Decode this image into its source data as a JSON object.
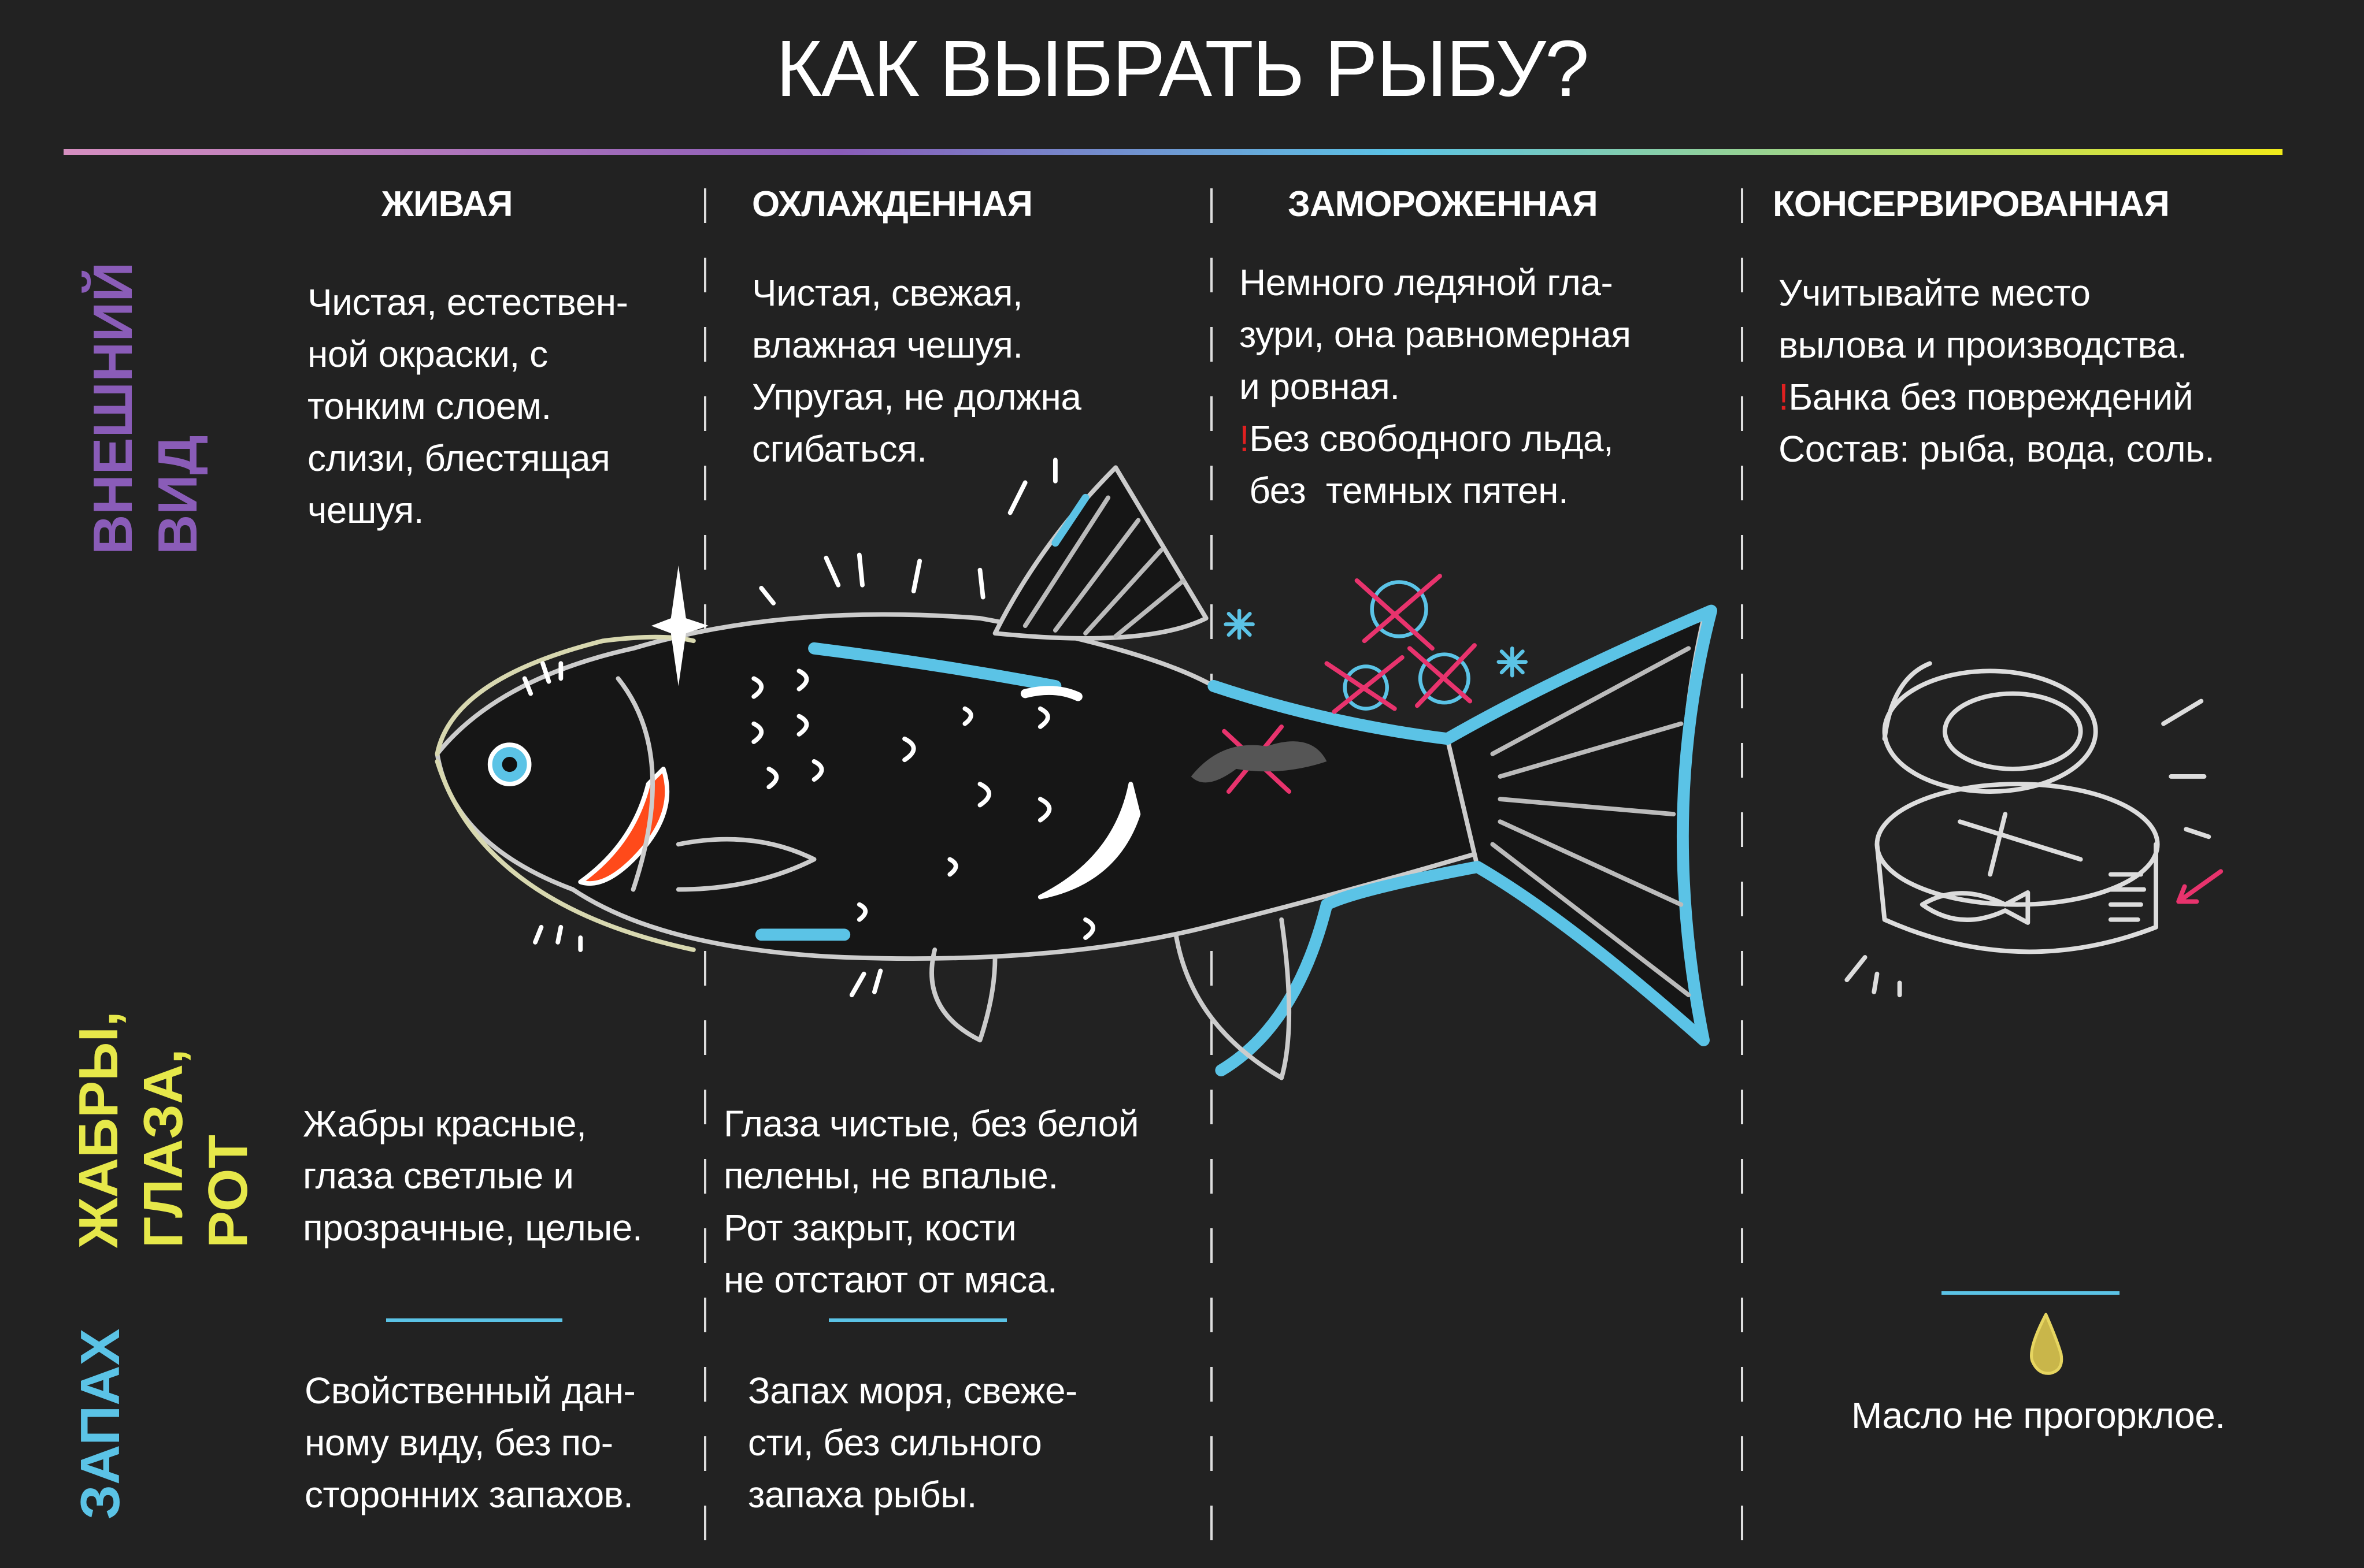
{
  "title": "КАК ВЫБРАТЬ РЫБУ?",
  "colors": {
    "appearance": "#8a5cb8",
    "gills": "#e6e84a",
    "smell": "#5bc3e6",
    "warning": "#e02020",
    "accent_line": "#5bc3e6"
  },
  "columns": [
    "ЖИВАЯ",
    "ОХЛАЖДЕННАЯ",
    "ЗАМОРОЖЕННАЯ",
    "КОНСЕРВИРОВАННАЯ"
  ],
  "rows": {
    "appearance": {
      "label": "ВНЕШНИЙ\nВИД",
      "live": "Чистая, естествен-\nной окраски, с\nтонким слоем.\nслизи, блестящая\nчешуя.",
      "chilled": "Чистая, свежая,\nвлажная чешуя.\nУпругая, не должна\nсгибаться.",
      "frozen": "Немного ледяной гла-\nзури, она равномерная\nи ровная.",
      "frozen_warning_mark": "!",
      "frozen_warning": "Без свободного льда,\nбез  темных пятен.",
      "canned_line1": "Учитывайте место\nвылова и производства.",
      "canned_warning_mark": "!",
      "canned_warning": "Банка без повреждений",
      "canned_line2": "Состав: рыба, вода, соль."
    },
    "gills": {
      "label": "ЖАБРЫ,\nГЛАЗА,\nРОТ",
      "live": "Жабры красные,\nглаза светлые и\nпрозрачные, целые.",
      "chilled": "Глаза чистые, без белой\nпелены, не впалые.\nРот закрыт, кости\nне отстают от мяса."
    },
    "smell": {
      "label": "ЗАПАХ",
      "live": "Свойственный дан-\nному виду, без по-\nсторонних запахов.",
      "chilled": "Запах моря, свеже-\nсти, без сильного\nзапаха рыбы.",
      "canned": "Масло не прогорклое."
    }
  },
  "icons": [
    "fish-illustration",
    "snowflake-icon",
    "ice-crystal-icon",
    "tin-can-icon",
    "oil-drop-icon"
  ]
}
